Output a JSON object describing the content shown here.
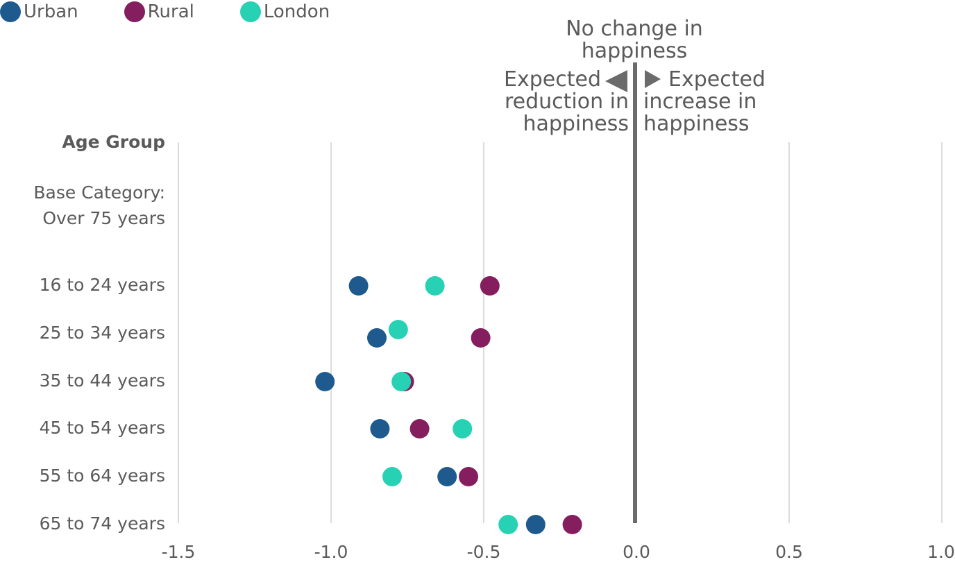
{
  "chart_data": {
    "type": "scatter",
    "title": "",
    "xlabel": "",
    "ylabel": "",
    "xlim": [
      -1.5,
      1.0
    ],
    "x_ticks": [
      "-1.5",
      "-1.0",
      "-0.5",
      "0.0",
      "0.5",
      "1.0"
    ],
    "x_tick_values": [
      -1.5,
      -1.0,
      -0.5,
      0.0,
      0.5,
      1.0
    ],
    "grid": true,
    "legend_position": "top-left",
    "y_header": "Age Group",
    "base_category": [
      "Base Category:",
      "Over 75 years"
    ],
    "categories": [
      "16 to 24 years",
      "25 to 34 years",
      "35 to 44 years",
      "45 to 54 years",
      "55 to 64 years",
      "65 to 74 years"
    ],
    "series": [
      {
        "name": "Urban",
        "color": "#1f5a8f",
        "values": [
          -0.91,
          -0.85,
          -1.02,
          -0.84,
          -0.62,
          -0.33
        ]
      },
      {
        "name": "Rural",
        "color": "#851e5e",
        "values": [
          -0.48,
          -0.51,
          -0.76,
          -0.71,
          -0.55,
          -0.21
        ]
      },
      {
        "name": "London",
        "color": "#27d1b4",
        "values": [
          -0.66,
          -0.78,
          -0.77,
          -0.57,
          -0.8,
          -0.42
        ]
      }
    ],
    "annotations": {
      "no_change": [
        "No change in",
        "happiness"
      ],
      "reduction": [
        "Expected",
        "reduction in",
        "happiness"
      ],
      "increase": [
        "Expected",
        "increase in",
        "happiness"
      ]
    }
  }
}
